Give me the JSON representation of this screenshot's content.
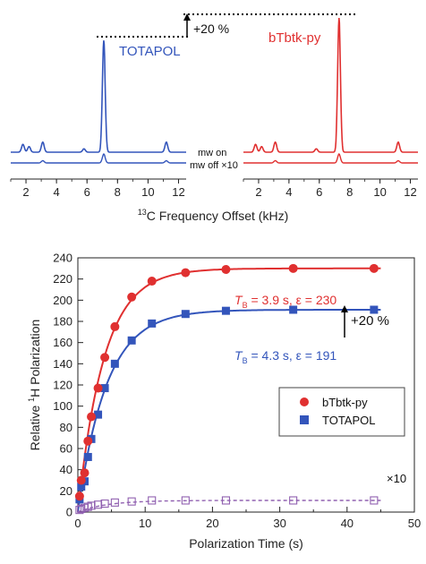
{
  "chart_data": [
    {
      "type": "line",
      "panel": "top-spectra",
      "xlabel_sup": "13",
      "xlabel_rest": "C Frequency Offset (kHz)",
      "xlim": [
        1,
        12.5
      ],
      "xticks": [
        "2",
        "4",
        "6",
        "8",
        "10",
        "12"
      ],
      "series": [
        {
          "name": "TOTAPOL",
          "color": "#3355bb",
          "mw_on_peaks_kHz": [
            [
              1.8,
              0.07
            ],
            [
              2.2,
              0.05
            ],
            [
              3.1,
              0.09
            ],
            [
              5.8,
              0.03
            ],
            [
              7.1,
              1.0
            ],
            [
              11.2,
              0.09
            ]
          ],
          "mw_off_peaks_kHz": [
            [
              7.1,
              0.08
            ],
            [
              3.1,
              0.02
            ],
            [
              11.2,
              0.02
            ]
          ]
        },
        {
          "name": "bTbtk-py",
          "color": "#e03030",
          "mw_on_peaks_kHz": [
            [
              1.8,
              0.07
            ],
            [
              2.2,
              0.05
            ],
            [
              3.1,
              0.09
            ],
            [
              5.8,
              0.03
            ],
            [
              7.3,
              1.2
            ],
            [
              11.2,
              0.09
            ]
          ],
          "mw_off_peaks_kHz": [
            [
              7.3,
              0.08
            ],
            [
              3.1,
              0.02
            ],
            [
              11.2,
              0.02
            ]
          ]
        }
      ],
      "annotations": {
        "mw_on": "mw on",
        "mw_off": "mw off ×10",
        "increase": "+20 %"
      }
    },
    {
      "type": "scatter",
      "panel": "buildup",
      "xlabel": "Polarization Time (s)",
      "ylabel_pre": "Relative ",
      "ylabel_sup": "1",
      "ylabel_post": "H Polarization",
      "xlim": [
        0,
        50
      ],
      "ylim": [
        0,
        240
      ],
      "xticks": [
        0,
        10,
        20,
        30,
        40,
        50
      ],
      "yticks": [
        0,
        20,
        40,
        60,
        80,
        100,
        120,
        140,
        160,
        180,
        200,
        220,
        240
      ],
      "legend_position": "right-middle",
      "series": [
        {
          "name": "bTbtk-py",
          "color": "#e03030",
          "marker": "circle",
          "Tb": 3.9,
          "eps": 230,
          "x": [
            0.25,
            0.5,
            1,
            1.5,
            2,
            3,
            4,
            5.5,
            8,
            11,
            16,
            22,
            32,
            44
          ],
          "y": [
            15,
            30,
            37,
            67,
            90,
            117,
            146,
            175,
            203,
            218,
            226,
            229,
            230,
            230
          ]
        },
        {
          "name": "TOTAPOL",
          "color": "#3355bb",
          "marker": "square",
          "Tb": 4.3,
          "eps": 191,
          "x": [
            0.25,
            0.5,
            1,
            1.5,
            2,
            3,
            4,
            5.5,
            8,
            11,
            16,
            22,
            32,
            44
          ],
          "y": [
            12,
            24,
            29,
            52,
            69,
            92,
            117,
            140,
            162,
            178,
            187,
            190,
            191,
            191
          ]
        },
        {
          "color": "#9060b0",
          "marker": "open-square",
          "x": [
            0.25,
            0.5,
            1,
            1.5,
            2,
            3,
            4,
            5.5,
            8,
            11,
            16,
            22,
            32,
            44
          ],
          "y": [
            2,
            3,
            4,
            5,
            6,
            7,
            8,
            9,
            10,
            11,
            11,
            11,
            11,
            11
          ]
        }
      ],
      "annotations": {
        "red_Tb_sym": "T",
        "red_Tb_sub": "B",
        "red_rest": " = 3.9 s, ε = 230",
        "blue_Tb_sym": "T",
        "blue_Tb_sub": "B",
        "blue_rest": " = 4.3 s, ε = 191",
        "increase": "+20 %",
        "times10": "×10"
      }
    }
  ]
}
